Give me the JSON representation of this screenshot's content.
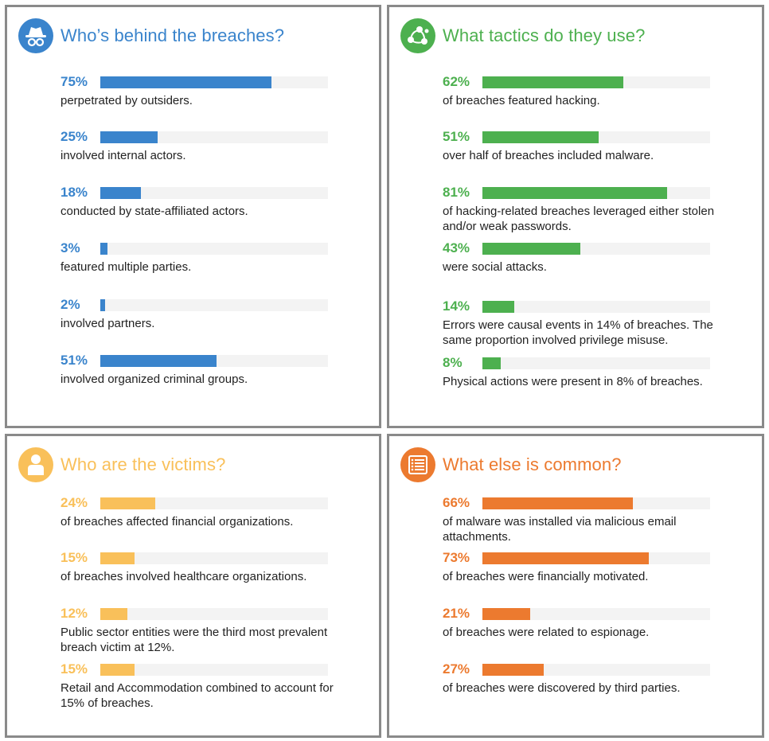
{
  "chart_data": [
    {
      "type": "bar",
      "title": "Who’s behind the breaches?",
      "color": "#3a84cc",
      "icon": "spy-icon",
      "items": [
        {
          "value": 75,
          "label": "75%",
          "text": "perpetrated by outsiders."
        },
        {
          "value": 25,
          "label": "25%",
          "text": "involved internal actors."
        },
        {
          "value": 18,
          "label": "18%",
          "text": "conducted by state-affiliated actors."
        },
        {
          "value": 3,
          "label": "3%",
          "text": "featured multiple parties."
        },
        {
          "value": 2,
          "label": "2%",
          "text": "involved partners."
        },
        {
          "value": 51,
          "label": "51%",
          "text": "involved organized criminal groups."
        }
      ]
    },
    {
      "type": "bar",
      "title": "What tactics do they use?",
      "color": "#4db04f",
      "icon": "network-nodes-icon",
      "items": [
        {
          "value": 62,
          "label": "62%",
          "text": "of breaches featured hacking."
        },
        {
          "value": 51,
          "label": "51%",
          "text": "over half of breaches included malware."
        },
        {
          "value": 81,
          "label": "81%",
          "text": "of hacking-related breaches leveraged either stolen and/or weak passwords."
        },
        {
          "value": 43,
          "label": "43%",
          "text": "were social attacks."
        },
        {
          "value": 14,
          "label": "14%",
          "text": "Errors were causal events in 14% of breaches. The same proportion involved privilege misuse."
        },
        {
          "value": 8,
          "label": "8%",
          "text": "Physical actions were present in 8% of breaches."
        }
      ]
    },
    {
      "type": "bar",
      "title": "Who are the victims?",
      "color": "#f9c05a",
      "icon": "person-icon",
      "items": [
        {
          "value": 24,
          "label": "24%",
          "text": "of breaches affected financial organizations."
        },
        {
          "value": 15,
          "label": "15%",
          "text": "of breaches involved healthcare organizations."
        },
        {
          "value": 12,
          "label": "12%",
          "text": "Public sector entities were the third most prevalent breach victim at 12%."
        },
        {
          "value": 15,
          "label": "15%",
          "text": "Retail and Accommodation combined to account for 15% of breaches."
        }
      ]
    },
    {
      "type": "bar",
      "title": "What else is common?",
      "color": "#ec7a2f",
      "icon": "list-icon",
      "items": [
        {
          "value": 66,
          "label": "66%",
          "text": "of malware was installed via malicious email attachments."
        },
        {
          "value": 73,
          "label": "73%",
          "text": "of breaches were financially motivated."
        },
        {
          "value": 21,
          "label": "21%",
          "text": "of breaches were related to espionage."
        },
        {
          "value": 27,
          "label": "27%",
          "text": "of breaches were discovered by third parties."
        }
      ]
    }
  ]
}
